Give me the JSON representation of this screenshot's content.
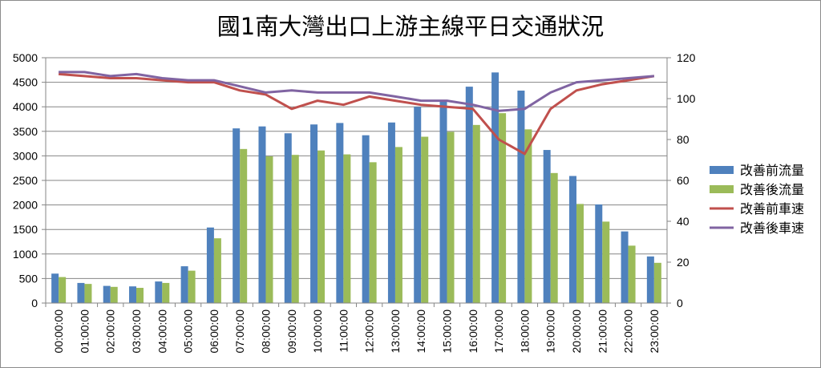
{
  "chart_data": {
    "type": "bar",
    "title": "國1南大灣出口上游主線平日交通狀況",
    "categories": [
      "00:00:00",
      "01:00:00",
      "02:00:00",
      "03:00:00",
      "04:00:00",
      "05:00:00",
      "06:00:00",
      "07:00:00",
      "08:00:00",
      "09:00:00",
      "10:00:00",
      "11:00:00",
      "12:00:00",
      "13:00:00",
      "14:00:00",
      "15:00:00",
      "16:00:00",
      "17:00:00",
      "18:00:00",
      "19:00:00",
      "20:00:00",
      "21:00:00",
      "22:00:00",
      "23:00:00"
    ],
    "y_left": {
      "min": 0,
      "max": 5000,
      "step": 500
    },
    "y_right": {
      "min": 0,
      "max": 120,
      "step": 20
    },
    "series": [
      {
        "name": "改善前流量",
        "type": "bar",
        "axis": "left",
        "color": "#4f81bd",
        "values": [
          600,
          410,
          350,
          340,
          440,
          750,
          1540,
          3560,
          3600,
          3460,
          3640,
          3670,
          3420,
          3680,
          4000,
          4130,
          4410,
          4700,
          4330,
          3120,
          2590,
          2010,
          1460,
          950
        ]
      },
      {
        "name": "改善後流量",
        "type": "bar",
        "axis": "left",
        "color": "#9bbb59",
        "values": [
          530,
          390,
          330,
          310,
          410,
          660,
          1320,
          3140,
          2990,
          3020,
          3110,
          3030,
          2870,
          3180,
          3390,
          3490,
          3630,
          3870,
          3540,
          2650,
          2020,
          1660,
          1170,
          820
        ]
      },
      {
        "name": "改善前車速",
        "type": "line",
        "axis": "right",
        "color": "#c0504d",
        "values": [
          112,
          111,
          110,
          110,
          109,
          108,
          108,
          104,
          102,
          95,
          99,
          97,
          101,
          99,
          97,
          96,
          95,
          80,
          73,
          95,
          104,
          107,
          109,
          111
        ]
      },
      {
        "name": "改善後車速",
        "type": "line",
        "axis": "right",
        "color": "#8064a2",
        "values": [
          113,
          113,
          111,
          112,
          110,
          109,
          109,
          106,
          103,
          104,
          103,
          103,
          103,
          101,
          99,
          99,
          97,
          94,
          95,
          103,
          108,
          109,
          110,
          111
        ]
      }
    ]
  }
}
